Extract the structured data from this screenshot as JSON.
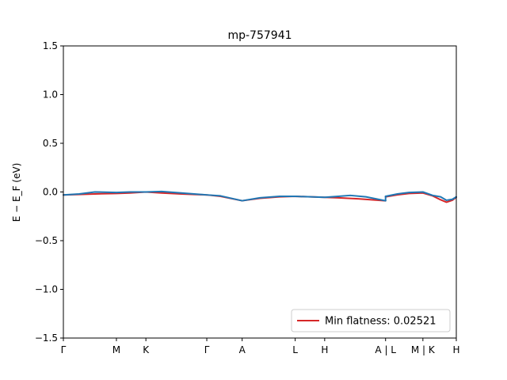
{
  "chart_data": {
    "type": "line",
    "title": "mp-757941",
    "xlabel": "",
    "ylabel": "E − E_F (eV)",
    "ylim": [
      -1.5,
      1.5
    ],
    "xlim": [
      0,
      100
    ],
    "yticks": [
      -1.5,
      -1.0,
      -0.5,
      0.0,
      0.5,
      1.0,
      1.5
    ],
    "ytick_labels": [
      "−1.5",
      "−1.0",
      "−0.5",
      "0.0",
      "0.5",
      "1.0",
      "1.5"
    ],
    "xticks": [
      {
        "x": 0,
        "label": "Γ"
      },
      {
        "x": 13.5,
        "label": "M"
      },
      {
        "x": 21.0,
        "label": "K"
      },
      {
        "x": 36.5,
        "label": "Γ"
      },
      {
        "x": 45.5,
        "label": "A"
      },
      {
        "x": 59.0,
        "label": "L"
      },
      {
        "x": 66.5,
        "label": "H"
      },
      {
        "x": 82.0,
        "label": "A | L"
      },
      {
        "x": 91.5,
        "label": "M | K"
      },
      {
        "x": 100,
        "label": "H"
      }
    ],
    "legend": {
      "placement": "lower-right",
      "entries": [
        {
          "label": "Min flatness: 0.02521",
          "color": "#d62728"
        }
      ]
    },
    "grid": false,
    "series": [
      {
        "name": "Min flatness: 0.02521",
        "color": "#d62728",
        "segments": [
          {
            "x": [
              0,
              4,
              8,
              13.5,
              17,
              21,
              25,
              30,
              36.5,
              40,
              45.5,
              50,
              55,
              59,
              63,
              66.5,
              70,
              75,
              82
            ],
            "y": [
              -0.03,
              -0.025,
              -0.02,
              -0.015,
              -0.01,
              0.0,
              -0.01,
              -0.02,
              -0.03,
              -0.045,
              -0.09,
              -0.065,
              -0.05,
              -0.045,
              -0.05,
              -0.055,
              -0.06,
              -0.07,
              -0.09
            ]
          },
          {
            "x": [
              82,
              85,
              88,
              91.5,
              94,
              96,
              97.5,
              99,
              100
            ],
            "y": [
              -0.05,
              -0.03,
              -0.015,
              -0.01,
              -0.04,
              -0.08,
              -0.105,
              -0.085,
              -0.055
            ]
          }
        ]
      },
      {
        "name": "",
        "color": "#1f77b4",
        "segments": [
          {
            "x": [
              0,
              4,
              8,
              13.5,
              17,
              21,
              25,
              30,
              36.5,
              40,
              45.5,
              50,
              55,
              59,
              63,
              66.5,
              70,
              73,
              77,
              82
            ],
            "y": [
              -0.03,
              -0.02,
              0.0,
              -0.005,
              0.0,
              0.0,
              0.005,
              -0.01,
              -0.03,
              -0.04,
              -0.09,
              -0.06,
              -0.045,
              -0.045,
              -0.05,
              -0.055,
              -0.045,
              -0.035,
              -0.05,
              -0.09
            ]
          },
          {
            "x": [
              82,
              82
            ],
            "y": [
              -0.09,
              -0.045
            ]
          },
          {
            "x": [
              82,
              85,
              88,
              91.5,
              94,
              96,
              97.5,
              99,
              100
            ],
            "y": [
              -0.045,
              -0.02,
              -0.005,
              0.0,
              -0.035,
              -0.05,
              -0.085,
              -0.075,
              -0.05
            ]
          }
        ]
      }
    ]
  }
}
